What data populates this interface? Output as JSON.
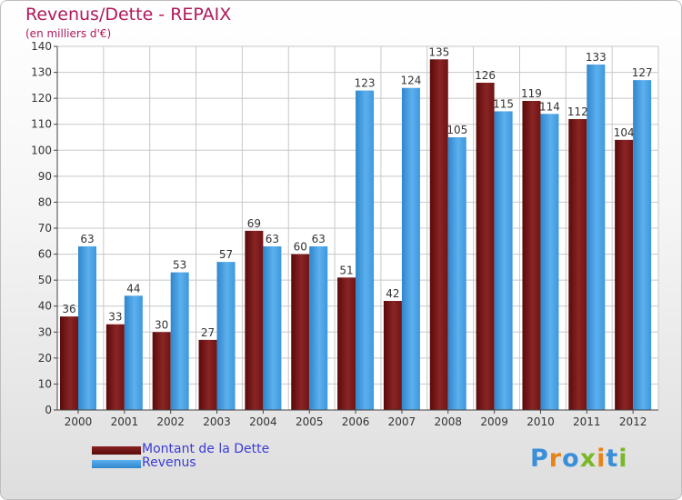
{
  "title": "Revenus/Dette - REPAIX",
  "subtitle": "(en milliers d'€)",
  "logo": "Proxiti",
  "colors": {
    "title": "#b0185c",
    "dette": "#7a1c1c",
    "revenus": "#3a97dc",
    "legend_text": "#3b3bd6",
    "grid": "#c8c8c8"
  },
  "chart_data": {
    "type": "bar",
    "title": "Revenus/Dette - REPAIX",
    "subtitle": "(en milliers d'€)",
    "categories": [
      "2000",
      "2001",
      "2002",
      "2003",
      "2004",
      "2005",
      "2006",
      "2007",
      "2008",
      "2009",
      "2010",
      "2011",
      "2012"
    ],
    "series": [
      {
        "name": "Montant de la Dette",
        "values": [
          36,
          33,
          30,
          27,
          69,
          60,
          51,
          42,
          135,
          126,
          119,
          112,
          104
        ]
      },
      {
        "name": "Revenus",
        "values": [
          63,
          44,
          53,
          57,
          63,
          63,
          123,
          124,
          105,
          115,
          114,
          133,
          127
        ]
      }
    ],
    "ylim": [
      0,
      140
    ],
    "yticks": [
      0,
      10,
      20,
      30,
      40,
      50,
      60,
      70,
      80,
      90,
      100,
      110,
      120,
      130,
      140
    ],
    "grid": true,
    "legend_position": "bottom-left"
  }
}
